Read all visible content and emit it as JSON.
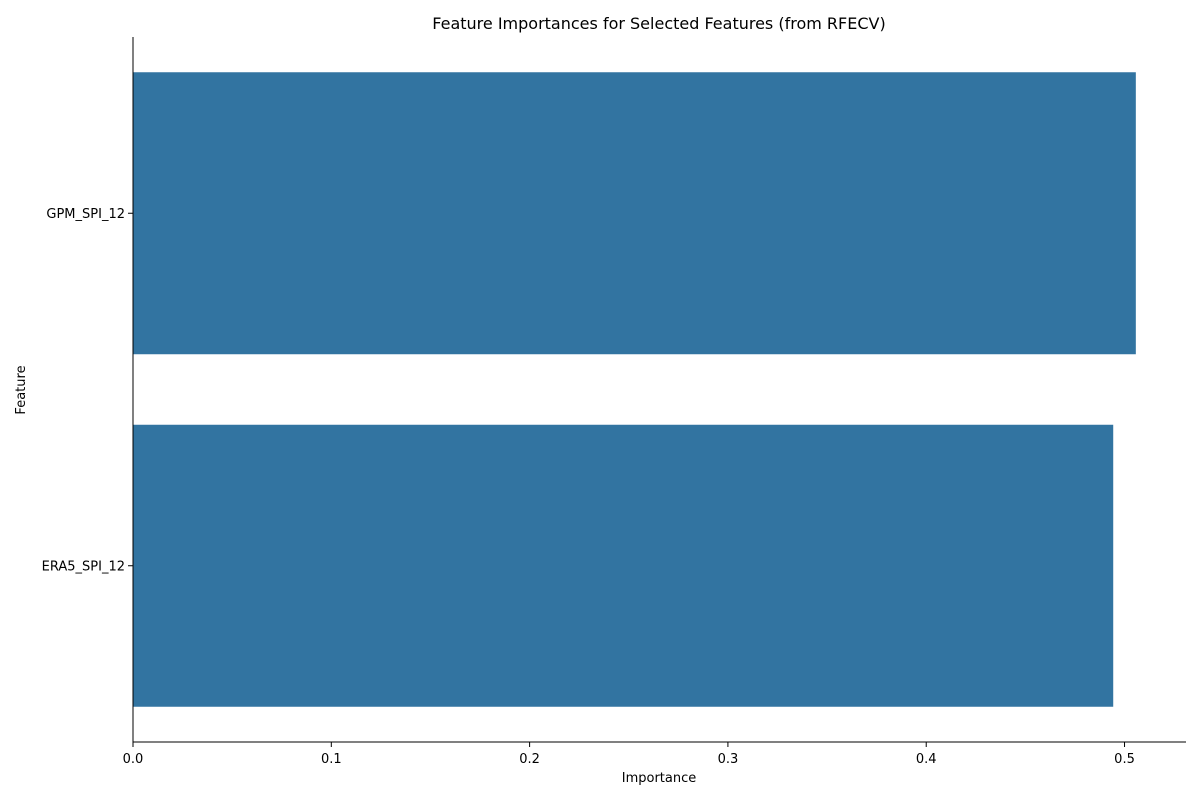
{
  "chart_data": {
    "type": "bar",
    "orientation": "horizontal",
    "title": "Feature Importances for Selected Features (from RFECV)",
    "xlabel": "Importance",
    "ylabel": "Feature",
    "categories": [
      "GPM_SPI_12",
      "ERA5_SPI_12"
    ],
    "values": [
      0.5057,
      0.4943
    ],
    "xlim": [
      0,
      0.531
    ],
    "xticks": [
      0.0,
      0.1,
      0.2,
      0.3,
      0.4,
      0.5
    ],
    "xtick_labels": [
      "0.0",
      "0.1",
      "0.2",
      "0.3",
      "0.4",
      "0.5"
    ],
    "grid": false,
    "legend": "none",
    "bar_color": "#3274a1"
  }
}
